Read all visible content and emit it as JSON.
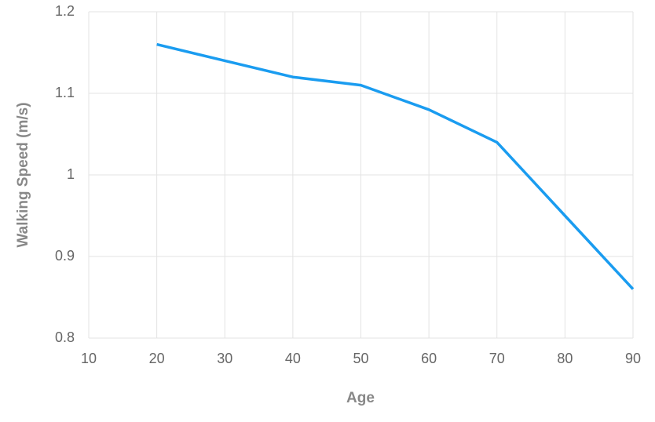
{
  "chart_data": {
    "type": "line",
    "x_label": "Age",
    "y_label": "Walking Speed (m/s)",
    "x": [
      20,
      30,
      40,
      50,
      60,
      70,
      80,
      90
    ],
    "series": [
      {
        "name": "Walking Speed",
        "color": "#1a9cf0",
        "values": [
          1.16,
          1.14,
          1.12,
          1.11,
          1.08,
          1.04,
          0.95,
          0.86
        ]
      }
    ],
    "xlim": [
      10,
      90
    ],
    "xticks": [
      10,
      20,
      30,
      40,
      50,
      60,
      70,
      80,
      90
    ],
    "ylim": [
      0.8,
      1.2
    ],
    "yticks": [
      0.8,
      0.9,
      1,
      1.1,
      1.2
    ],
    "grid": true
  }
}
